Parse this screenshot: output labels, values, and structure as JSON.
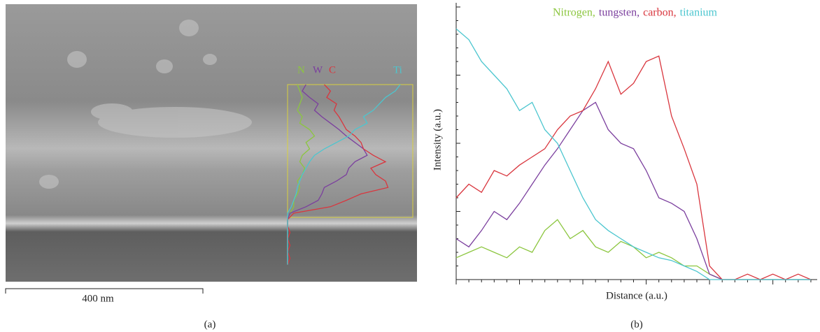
{
  "panel_a": {
    "labels": [
      "N",
      "W",
      "C",
      "Ti"
    ],
    "scale_bar": "400 nm",
    "caption": "(a)"
  },
  "chart_data": {
    "type": "line",
    "caption": "(b)",
    "x_label": "Distance (a.u.)",
    "y_label": "Intensity (a.u.)",
    "x": [
      0,
      4,
      8,
      12,
      16,
      20,
      24,
      28,
      32,
      36,
      40,
      44,
      48,
      52,
      56,
      60,
      64,
      68,
      72,
      76,
      80,
      84,
      88,
      92,
      96,
      100,
      104,
      108,
      112
    ],
    "series": [
      {
        "name": "Nitrogen,",
        "color": "#8cc63f",
        "values": [
          8,
          10,
          12,
          10,
          8,
          12,
          10,
          18,
          22,
          15,
          18,
          12,
          10,
          14,
          12,
          8,
          10,
          8,
          5,
          5,
          2,
          0,
          0,
          0,
          0,
          0,
          0,
          0,
          0
        ]
      },
      {
        "name": "tungsten,",
        "color": "#7b3f9e",
        "values": [
          15,
          12,
          18,
          25,
          22,
          28,
          35,
          42,
          48,
          55,
          62,
          65,
          55,
          50,
          48,
          40,
          30,
          28,
          25,
          15,
          2,
          0,
          0,
          0,
          0,
          0,
          0,
          0,
          0
        ]
      },
      {
        "name": "carbon,",
        "color": "#d9363e",
        "values": [
          30,
          35,
          32,
          40,
          38,
          42,
          45,
          48,
          55,
          60,
          62,
          70,
          80,
          68,
          72,
          80,
          82,
          60,
          48,
          35,
          5,
          0,
          0,
          2,
          0,
          2,
          0,
          2,
          0
        ]
      },
      {
        "name": "titanium",
        "color": "#4cc6cf",
        "values": [
          92,
          88,
          80,
          75,
          70,
          62,
          65,
          55,
          50,
          40,
          30,
          22,
          18,
          15,
          12,
          10,
          8,
          7,
          5,
          3,
          0,
          0,
          0,
          0,
          0,
          0,
          0,
          0,
          0
        ]
      }
    ],
    "xlim": [
      0,
      114
    ],
    "ylim": [
      0,
      100
    ],
    "xticks": [
      0,
      4,
      8,
      12,
      16,
      20,
      24,
      28,
      32,
      36,
      40,
      44,
      48,
      52,
      56,
      60,
      64,
      68,
      72,
      76,
      80,
      84,
      88,
      92,
      96,
      100,
      104,
      108,
      112
    ],
    "yticks": [
      0,
      5,
      10,
      15,
      20,
      25,
      30,
      35,
      40,
      45,
      50,
      55,
      60,
      65,
      70,
      75,
      80,
      85,
      90,
      95,
      100
    ]
  }
}
